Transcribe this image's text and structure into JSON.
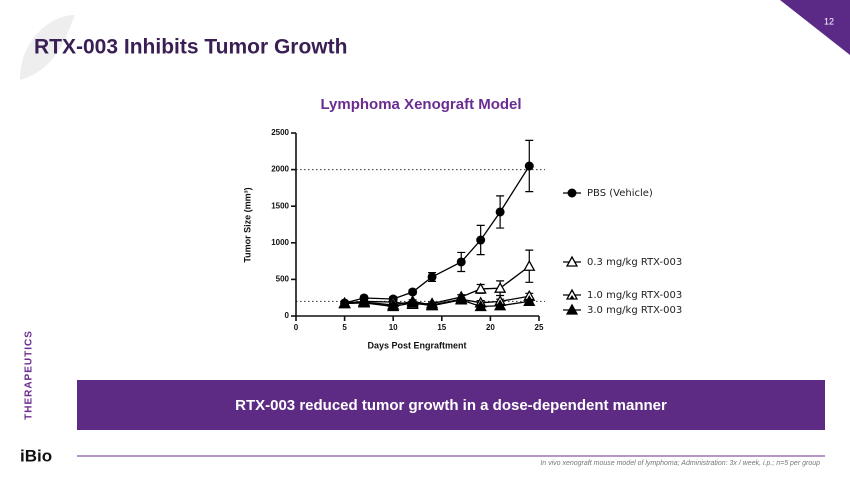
{
  "slide": {
    "title": "RTX-003 Inhibits Tumor Growth",
    "page_number": "12",
    "section": "THERAPEUTICS",
    "banner": "RTX-003 reduced tumor growth in a dose-dependent manner",
    "footnote": "In vivo xenograft mouse model of lymphoma; Administration: 3x / week, i.p.; n=5 per group",
    "logo": "iBio"
  },
  "chart_data": {
    "type": "line",
    "title": "Lymphoma Xenograft Model",
    "x_label": "Days Post Engraftment",
    "y_label": "Tumor Size (mm³)",
    "x": [
      5,
      7,
      10,
      12,
      14,
      17,
      19,
      21,
      24
    ],
    "xlim": [
      0,
      25
    ],
    "xticks": [
      0,
      5,
      10,
      15,
      20,
      25
    ],
    "ylim": [
      0,
      2500
    ],
    "yticks": [
      0,
      500,
      1000,
      1500,
      2000,
      2500
    ],
    "reference_lines": [
      2000,
      200
    ],
    "series": [
      {
        "name": "PBS (Vehicle)",
        "color": "#000000",
        "marker": "circle",
        "values": [
          178,
          246,
          232,
          328,
          533,
          738,
          1038,
          1421,
          2049
        ],
        "errors": [
          20,
          25,
          30,
          30,
          60,
          130,
          200,
          220,
          350
        ]
      },
      {
        "name": "0.3 mg/kg RTX-003",
        "color": "#000000",
        "marker": "triangle-open",
        "values": [
          175,
          200,
          190,
          160,
          170,
          260,
          370,
          380,
          680
        ],
        "errors": [
          20,
          20,
          20,
          20,
          20,
          30,
          60,
          100,
          220
        ]
      },
      {
        "name": "1.0 mg/kg RTX-003",
        "color": "#000000",
        "marker": "triangle-half",
        "values": [
          170,
          190,
          150,
          200,
          150,
          230,
          180,
          200,
          270
        ],
        "errors": [
          20,
          20,
          20,
          20,
          20,
          20,
          30,
          30,
          40
        ]
      },
      {
        "name": "3.0 mg/kg RTX-003",
        "color": "#000000",
        "marker": "triangle",
        "values": [
          170,
          180,
          130,
          180,
          140,
          220,
          130,
          140,
          200
        ],
        "errors": [
          15,
          15,
          15,
          15,
          15,
          20,
          20,
          20,
          25
        ]
      }
    ]
  }
}
